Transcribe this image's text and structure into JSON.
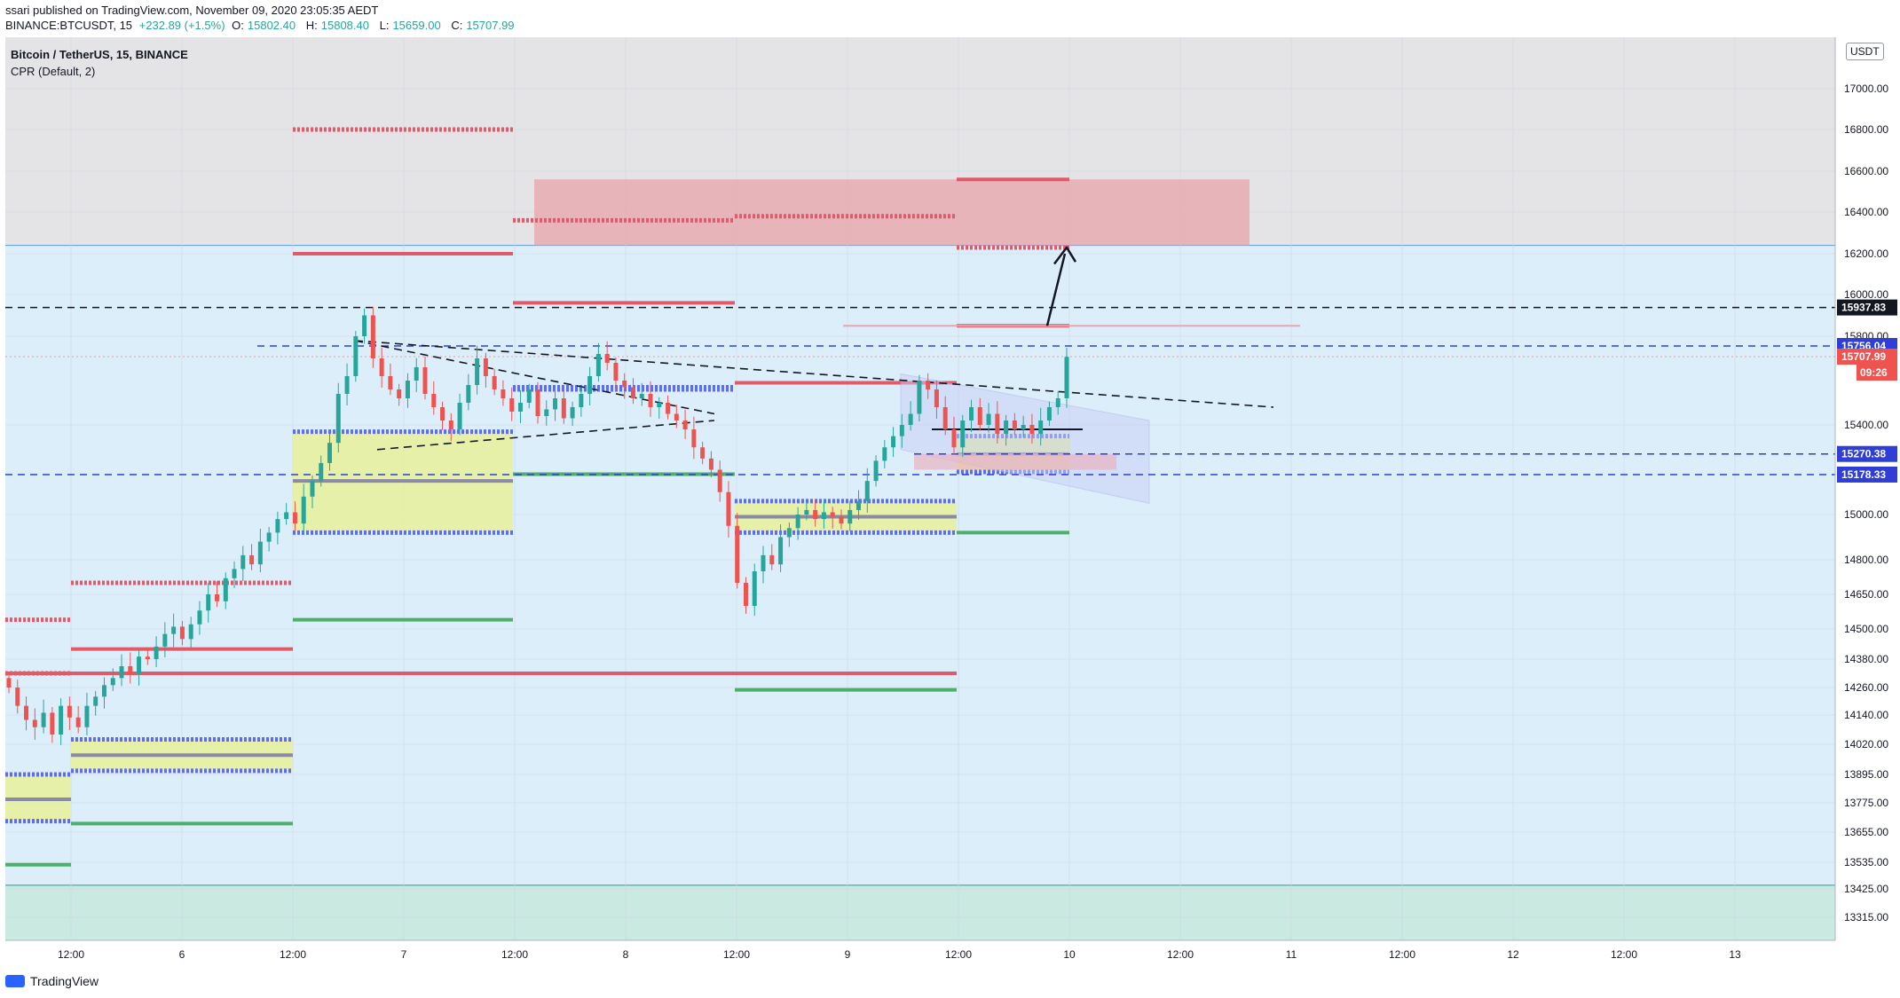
{
  "header": {
    "published": "ssari published on TradingView.com, November 09, 2020 23:05:35 AEDT",
    "symbol": "BINANCE:BTCUSDT, 15",
    "change": "+232.89 (+1.5%)",
    "ohlc": {
      "o_label": "O:",
      "o": "15802.40",
      "h_label": "H:",
      "h": "15808.40",
      "l_label": "L:",
      "l": "15659.00",
      "c_label": "C:",
      "c": "15707.99"
    }
  },
  "legend": {
    "title": "Bitcoin / TetherUS, 15, BINANCE",
    "indicator": "CPR (Default, 2)"
  },
  "currency_button": "USDT",
  "footer": {
    "brand": "TradingView"
  },
  "colors": {
    "pivot_red": "#e05a6a",
    "pivot_green": "#4caf6a",
    "pivot_blue": "#5b6bff",
    "pivot_gray": "#8a8aa6",
    "cpr_fill": "#e8f0a0",
    "zone_blue": "#ddeefb",
    "zone_gray": "#e4e4e6",
    "zone_teal": "#c9e9e1",
    "box_red": "#e8a4ab",
    "channel": "#c9cdf5"
  },
  "chart_data": {
    "type": "candlestick",
    "title": "Bitcoin / TetherUS, 15, BINANCE",
    "x_tick_labels": [
      "12:00",
      "6",
      "12:00",
      "7",
      "12:00",
      "8",
      "12:00",
      "9",
      "12:00",
      "10",
      "12:00",
      "11",
      "12:00",
      "12",
      "12:00",
      "13"
    ],
    "y_tick_labels": [
      "17000.00",
      "16800.00",
      "16600.00",
      "16400.00",
      "16200.00",
      "16000.00",
      "15800.00",
      "15400.00",
      "15000.00",
      "14800.00",
      "14650.00",
      "14500.00",
      "14380.00",
      "14260.00",
      "14140.00",
      "14020.00",
      "13895.00",
      "13775.00",
      "13655.00",
      "13535.00",
      "13425.00",
      "13315.00"
    ],
    "price_labels": [
      {
        "value": "15937.83",
        "color": "#131722",
        "text_color": "#ffffff"
      },
      {
        "value": "15756.04",
        "color": "#2f3fd6",
        "text_color": "#ffffff"
      },
      {
        "value": "15707.99",
        "color": "#ef5350",
        "text_color": "#ffffff"
      },
      {
        "value": "15270.38",
        "color": "#2f3fd6",
        "text_color": "#ffffff"
      },
      {
        "value": "15178.33",
        "color": "#2f3fd6",
        "text_color": "#ffffff"
      }
    ],
    "countdown": "09:26",
    "ohlc_last": {
      "open": 15802.4,
      "high": 15808.4,
      "low": 15659.0,
      "close": 15707.99
    },
    "series_close": [
      14260,
      14180,
      14120,
      14090,
      14150,
      14060,
      14180,
      14130,
      14090,
      14180,
      14220,
      14270,
      14300,
      14350,
      14320,
      14390,
      14380,
      14430,
      14480,
      14510,
      14460,
      14520,
      14580,
      14650,
      14620,
      14720,
      14760,
      14820,
      14780,
      14880,
      14920,
      14980,
      15010,
      14960,
      15080,
      15150,
      15230,
      15320,
      15540,
      15620,
      15800,
      15900,
      15700,
      15620,
      15560,
      15520,
      15600,
      15660,
      15540,
      15480,
      15420,
      15380,
      15500,
      15580,
      15700,
      15620,
      15560,
      15520,
      15460,
      15500,
      15560,
      15440,
      15470,
      15520,
      15430,
      15480,
      15540,
      15620,
      15720,
      15680,
      15600,
      15570,
      15520,
      15540,
      15480,
      15500,
      15450,
      15420,
      15380,
      15300,
      15250,
      15200,
      15100,
      14950,
      14700,
      14600,
      14750,
      14820,
      14780,
      14900,
      14940,
      15000,
      15020,
      14980,
      15010,
      14990,
      14960,
      15020,
      15060,
      15150,
      15240,
      15300,
      15350,
      15400,
      15450,
      15600,
      15560,
      15480,
      15380,
      15300,
      15420,
      15480,
      15400,
      15450,
      15360,
      15420,
      15380,
      15400,
      15360,
      15420,
      15480,
      15520,
      15707
    ]
  }
}
